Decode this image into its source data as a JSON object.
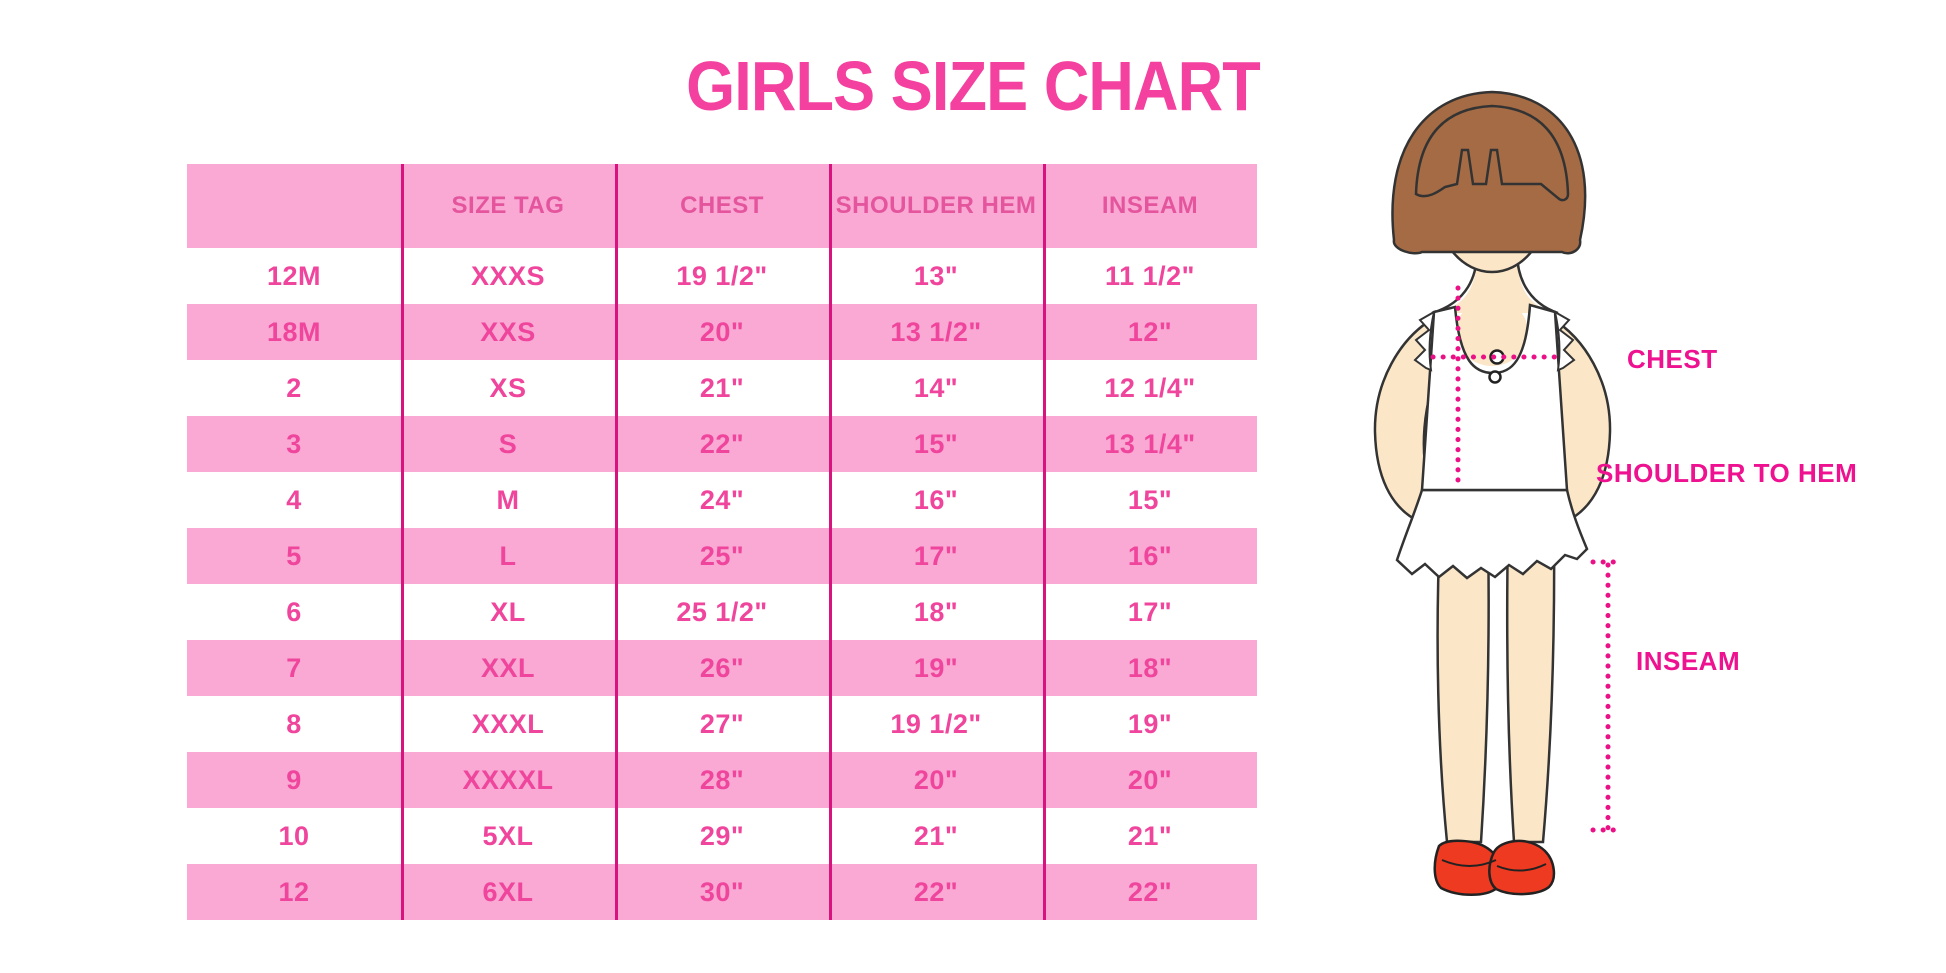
{
  "title": "GIRLS SIZE CHART",
  "chart_data": {
    "type": "table",
    "title": "GIRLS SIZE CHART",
    "columns": [
      "",
      "SIZE TAG",
      "CHEST",
      "SHOULDER HEM",
      "INSEAM"
    ],
    "rows": [
      [
        "12M",
        "XXXS",
        "19 1/2\"",
        "13\"",
        "11 1/2\""
      ],
      [
        "18M",
        "XXS",
        "20\"",
        "13 1/2\"",
        "12\""
      ],
      [
        "2",
        "XS",
        "21\"",
        "14\"",
        "12 1/4\""
      ],
      [
        "3",
        "S",
        "22\"",
        "15\"",
        "13 1/4\""
      ],
      [
        "4",
        "M",
        "24\"",
        "16\"",
        "15\""
      ],
      [
        "5",
        "L",
        "25\"",
        "17\"",
        "16\""
      ],
      [
        "6",
        "XL",
        "25 1/2\"",
        "18\"",
        "17\""
      ],
      [
        "7",
        "XXL",
        "26\"",
        "19\"",
        "18\""
      ],
      [
        "8",
        "XXXL",
        "27\"",
        "19 1/2\"",
        "19\""
      ],
      [
        "9",
        "XXXXL",
        "28\"",
        "20\"",
        "20\""
      ],
      [
        "10",
        "5XL",
        "29\"",
        "21\"",
        "21\""
      ],
      [
        "12",
        "6XL",
        "30\"",
        "22\"",
        "22\""
      ]
    ],
    "row_striping": "header pink, then alternating white/pink starting with white",
    "grid": "vertical magenta dividers between columns only"
  },
  "diagram": {
    "labels": {
      "chest": "CHEST",
      "shoulder_to_hem": "SHOULDER TO HEM",
      "inseam": "INSEAM"
    }
  },
  "colors": {
    "title_pink": "#F4409E",
    "row_pink": "#F9A9D3",
    "divider_magenta": "#D8137E",
    "cell_text_pink": "#F0459C",
    "header_text_pink": "#E4559E",
    "measure_line_magenta": "#EC1086",
    "label_magenta": "#EE1190",
    "hair_brown": "#A56B44",
    "skin": "#FBE7C8",
    "blush_pink": "#F2B9C6",
    "shoe_red": "#EE3A21",
    "outline_dark": "#333333"
  }
}
